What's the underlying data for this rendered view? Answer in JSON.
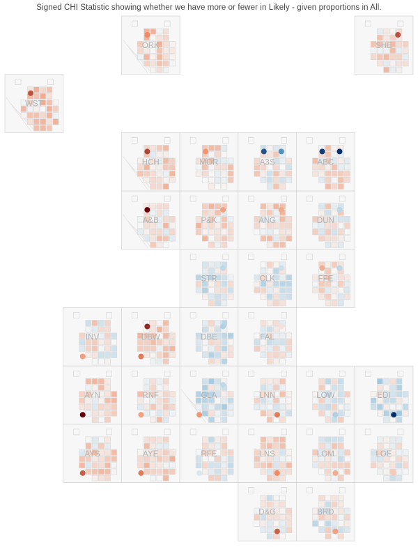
{
  "chart_data": {
    "type": "heatmap",
    "layout": "tile-grid-map",
    "title": "Signed CHI Statistic showing whether we have more or fewer in Likely - given proportions in All.",
    "scale": {
      "min": -1,
      "max": 1,
      "negative_color": "#08306b",
      "positive_color": "#67000d",
      "neutral_color": "#f7f7f7"
    },
    "tiles": [
      {
        "code": "ORK",
        "col": 2,
        "row": 0,
        "marker_tl": 0.5,
        "marker_tr": 0,
        "marker_br": 0,
        "marker_bl": 0,
        "cells_bias": 0.15
      },
      {
        "code": "SHE",
        "col": 6,
        "row": 0,
        "marker_tl": 0,
        "marker_tr": 0.7,
        "marker_br": 0,
        "marker_bl": 0,
        "cells_bias": 0.1
      },
      {
        "code": "WST",
        "col": 0,
        "row": 1,
        "marker_tl": 0.7,
        "marker_tr": 0,
        "marker_br": 0,
        "marker_bl": 0,
        "cells_bias": 0.15
      },
      {
        "code": "HCH",
        "col": 2,
        "row": 2,
        "marker_tl": 0.75,
        "marker_tr": 0,
        "marker_br": 0,
        "marker_bl": 0,
        "cells_bias": 0.12
      },
      {
        "code": "MOR",
        "col": 3,
        "row": 2,
        "marker_tl": 0.45,
        "marker_tr": 0,
        "marker_br": 0,
        "marker_bl": 0,
        "cells_bias": 0.1
      },
      {
        "code": "A3S",
        "col": 4,
        "row": 2,
        "marker_tl": -0.85,
        "marker_tr": -0.6,
        "marker_br": 0,
        "marker_bl": 0,
        "cells_bias": 0.05
      },
      {
        "code": "ABC",
        "col": 5,
        "row": 2,
        "marker_tl": -0.95,
        "marker_tr": -1.0,
        "marker_br": 0,
        "marker_bl": 0,
        "cells_bias": 0.08
      },
      {
        "code": "A&B",
        "col": 2,
        "row": 3,
        "marker_tl": 1.0,
        "marker_tr": 0,
        "marker_br": 0,
        "marker_bl": 0,
        "cells_bias": 0.1
      },
      {
        "code": "P&K",
        "col": 3,
        "row": 3,
        "marker_tl": 0,
        "marker_tr": 0.4,
        "marker_br": 0,
        "marker_bl": 0,
        "cells_bias": 0.12
      },
      {
        "code": "ANG",
        "col": 4,
        "row": 3,
        "marker_tl": 0,
        "marker_tr": 0.35,
        "marker_br": 0,
        "marker_bl": 0,
        "cells_bias": 0.1
      },
      {
        "code": "DUN",
        "col": 5,
        "row": 3,
        "marker_tl": 0,
        "marker_tr": -0.2,
        "marker_br": 0,
        "marker_bl": 0,
        "cells_bias": 0.05
      },
      {
        "code": "STR",
        "col": 3,
        "row": 4,
        "marker_tl": 0,
        "marker_tr": -0.2,
        "marker_br": 0,
        "marker_bl": 0,
        "cells_bias": -0.05
      },
      {
        "code": "CLK",
        "col": 4,
        "row": 4,
        "marker_tl": 0,
        "marker_tr": -0.15,
        "marker_br": 0,
        "marker_bl": 0,
        "cells_bias": -0.03
      },
      {
        "code": "FFE",
        "col": 5,
        "row": 4,
        "marker_tl": 0.35,
        "marker_tr": -0.2,
        "marker_br": 0,
        "marker_bl": 0,
        "cells_bias": 0.05
      },
      {
        "code": "INV",
        "col": 1,
        "row": 5,
        "marker_tl": 0,
        "marker_tr": 0,
        "marker_br": 0,
        "marker_bl": 0.4,
        "cells_bias": 0.05
      },
      {
        "code": "DBW",
        "col": 2,
        "row": 5,
        "marker_tl": 0.85,
        "marker_tr": 0,
        "marker_br": 0,
        "marker_bl": 0.55,
        "cells_bias": 0.1
      },
      {
        "code": "DBE",
        "col": 3,
        "row": 5,
        "marker_tl": 0,
        "marker_tr": -0.25,
        "marker_br": 0,
        "marker_bl": 0,
        "cells_bias": -0.05
      },
      {
        "code": "FAL",
        "col": 4,
        "row": 5,
        "marker_tl": 0,
        "marker_tr": 0.1,
        "marker_br": 0,
        "marker_bl": 0,
        "cells_bias": 0.03
      },
      {
        "code": "AYN",
        "col": 1,
        "row": 6,
        "marker_tl": 0,
        "marker_tr": 0,
        "marker_br": 0,
        "marker_bl": 1.0,
        "cells_bias": 0.1
      },
      {
        "code": "RNF",
        "col": 2,
        "row": 6,
        "marker_tl": 0,
        "marker_tr": 0,
        "marker_br": 0,
        "marker_bl": 0.4,
        "cells_bias": 0.1
      },
      {
        "code": "GLA",
        "col": 3,
        "row": 6,
        "marker_tl": 0,
        "marker_tr": -0.2,
        "marker_br": 0,
        "marker_bl": 0.45,
        "cells_bias": -0.08
      },
      {
        "code": "LNN",
        "col": 4,
        "row": 6,
        "marker_tl": 0,
        "marker_tr": 0,
        "marker_br": 0.55,
        "marker_bl": 0,
        "cells_bias": 0.05
      },
      {
        "code": "LOW",
        "col": 5,
        "row": 6,
        "marker_tl": 0,
        "marker_tr": 0,
        "marker_br": -0.25,
        "marker_bl": 0,
        "cells_bias": 0.0
      },
      {
        "code": "EDI",
        "col": 6,
        "row": 6,
        "marker_tl": 0,
        "marker_tr": 0,
        "marker_br": -1.0,
        "marker_bl": 0,
        "cells_bias": -0.1
      },
      {
        "code": "AYS",
        "col": 1,
        "row": 7,
        "marker_tl": 0,
        "marker_tr": 0,
        "marker_br": 0,
        "marker_bl": 0.65,
        "cells_bias": 0.1
      },
      {
        "code": "AYE",
        "col": 2,
        "row": 7,
        "marker_tl": 0,
        "marker_tr": 0,
        "marker_br": 0,
        "marker_bl": 0.55,
        "cells_bias": 0.12
      },
      {
        "code": "RFE",
        "col": 3,
        "row": 7,
        "marker_tl": 0,
        "marker_tr": 0,
        "marker_br": 0,
        "marker_bl": -0.1,
        "cells_bias": 0.0
      },
      {
        "code": "LNS",
        "col": 4,
        "row": 7,
        "marker_tl": 0,
        "marker_tr": 0,
        "marker_br": 0.5,
        "marker_bl": 0,
        "cells_bias": 0.08
      },
      {
        "code": "LOM",
        "col": 5,
        "row": 7,
        "marker_tl": 0,
        "marker_tr": 0,
        "marker_br": 0.35,
        "marker_bl": 0,
        "cells_bias": 0.03
      },
      {
        "code": "LOE",
        "col": 6,
        "row": 7,
        "marker_tl": 0,
        "marker_tr": 0,
        "marker_br": 0.2,
        "marker_bl": 0,
        "cells_bias": 0.02
      },
      {
        "code": "D&G",
        "col": 4,
        "row": 8,
        "marker_tl": 0,
        "marker_tr": 0,
        "marker_br": 0.65,
        "marker_bl": 0,
        "cells_bias": 0.02
      },
      {
        "code": "BRD",
        "col": 5,
        "row": 8,
        "marker_tl": 0,
        "marker_tr": 0,
        "marker_br": 0.4,
        "marker_bl": 0,
        "cells_bias": 0.0
      }
    ]
  }
}
